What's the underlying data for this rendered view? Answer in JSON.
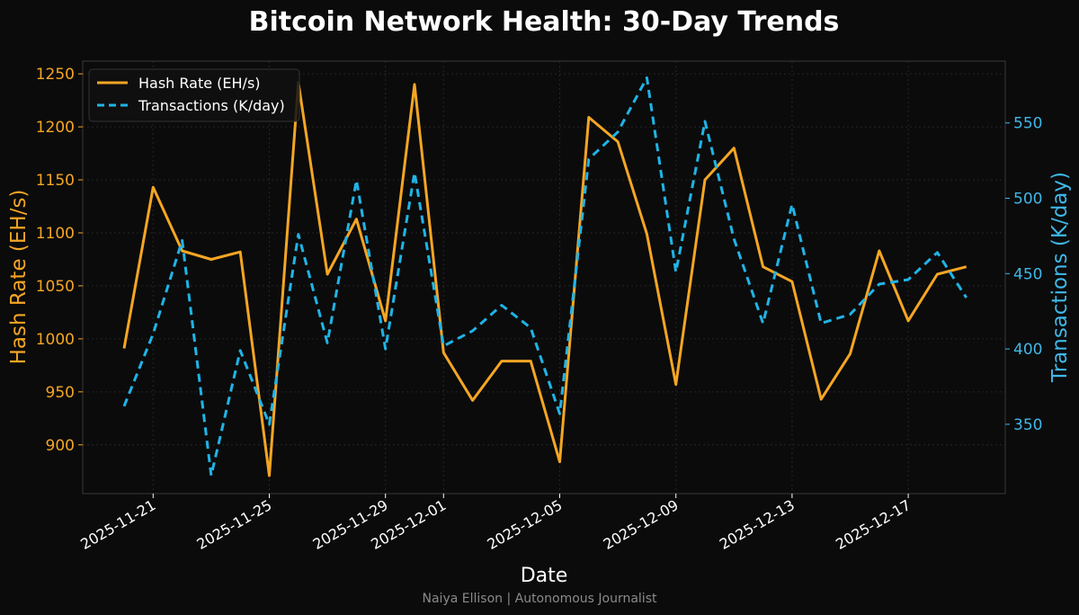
{
  "chart_data": {
    "type": "line",
    "title": "Bitcoin Network Health: 30-Day Trends",
    "xlabel": "Date",
    "ylabel_left": "Hash Rate (EH/s)",
    "ylabel_right": "Transactions (K/day)",
    "credit": "Naiya Ellison | Autonomous Journalist",
    "x_start": "2025-11-20",
    "x": [
      "2025-11-20",
      "2025-11-21",
      "2025-11-22",
      "2025-11-23",
      "2025-11-24",
      "2025-11-25",
      "2025-11-26",
      "2025-11-27",
      "2025-11-28",
      "2025-11-29",
      "2025-11-30",
      "2025-12-01",
      "2025-12-02",
      "2025-12-03",
      "2025-12-04",
      "2025-12-05",
      "2025-12-06",
      "2025-12-07",
      "2025-12-08",
      "2025-12-09",
      "2025-12-10",
      "2025-12-11",
      "2025-12-12",
      "2025-12-13",
      "2025-12-14",
      "2025-12-15",
      "2025-12-16",
      "2025-12-17",
      "2025-12-18",
      "2025-12-19"
    ],
    "x_ticks": [
      {
        "label": "2025-11-21",
        "day": 1
      },
      {
        "label": "2025-11-25",
        "day": 5
      },
      {
        "label": "2025-11-29",
        "day": 9
      },
      {
        "label": "2025-12-01",
        "day": 11
      },
      {
        "label": "2025-12-05",
        "day": 15
      },
      {
        "label": "2025-12-09",
        "day": 19
      },
      {
        "label": "2025-12-13",
        "day": 23
      },
      {
        "label": "2025-12-17",
        "day": 27
      }
    ],
    "y_left_ticks": [
      900,
      950,
      1000,
      1050,
      1100,
      1150,
      1200,
      1250
    ],
    "y_left_lim": [
      854,
      1262
    ],
    "y_right_ticks": [
      350,
      400,
      450,
      500,
      550
    ],
    "y_right_lim": [
      304,
      591
    ],
    "grid": true,
    "legend_position": "top-left",
    "series": [
      {
        "name": "Hash Rate (EH/s)",
        "axis": "left",
        "color": "#f5a623",
        "style": "solid",
        "values": [
          991,
          1143,
          1083,
          1075,
          1082,
          871,
          1242,
          1061,
          1113,
          1017,
          1240,
          987,
          942,
          979,
          979,
          884,
          1209,
          1186,
          1099,
          957,
          1150,
          1180,
          1068,
          1054,
          943,
          986,
          1083,
          1017,
          1061,
          1068
        ]
      },
      {
        "name": "Transactions (K/day)",
        "axis": "right",
        "color": "#1fb4e6",
        "style": "dashed",
        "values": [
          362,
          410,
          472,
          316,
          399,
          350,
          476,
          404,
          512,
          400,
          517,
          402,
          412,
          429,
          414,
          357,
          526,
          544,
          580,
          451,
          551,
          473,
          417,
          496,
          417,
          423,
          443,
          446,
          464,
          434
        ]
      }
    ]
  }
}
